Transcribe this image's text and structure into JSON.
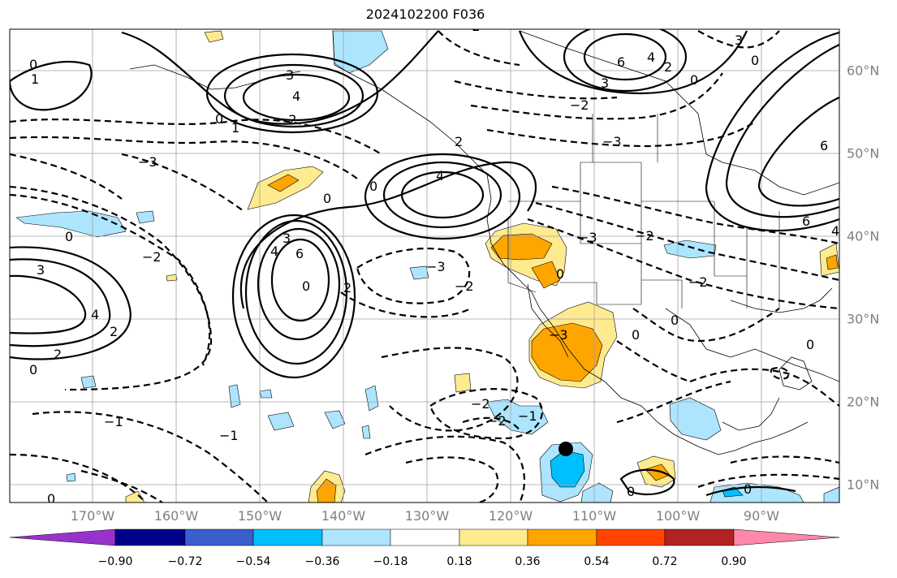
{
  "title": "2024102200 F036",
  "map": {
    "lon_labels": [
      "170°W",
      "160°W",
      "150°W",
      "140°W",
      "130°W",
      "120°W",
      "110°W",
      "100°W",
      "90°W"
    ],
    "lat_labels": [
      "60°N",
      "50°N",
      "40°N",
      "30°N",
      "20°N",
      "10°N"
    ],
    "contour_labels": [
      "0",
      "1",
      "2",
      "3",
      "4",
      "6",
      "−1",
      "−2",
      "−3"
    ],
    "marker": "black-dot"
  },
  "colorbar": {
    "ticks": [
      "−0.90",
      "−0.72",
      "−0.54",
      "−0.36",
      "−0.18",
      "0.18",
      "0.36",
      "0.54",
      "0.72",
      "0.90"
    ],
    "colors": [
      "#9932cc",
      "#00008b",
      "#3a5fcd",
      "#00bfff",
      "#ade5ff",
      "#ffffff",
      "#ffeb8f",
      "#ffa500",
      "#ff4500",
      "#b22222",
      "#ff88aa"
    ]
  }
}
